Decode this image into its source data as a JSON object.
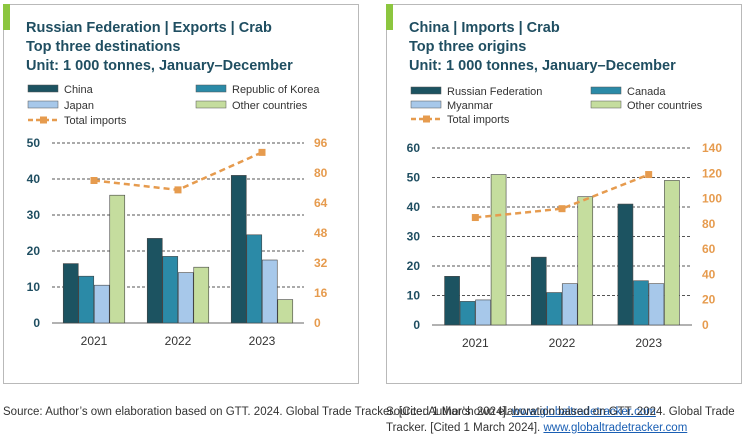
{
  "panels": [
    {
      "title_lines": [
        "Russian Federation | Exports | Crab",
        "Top three destinations",
        "Unit: 1 000 tonnes, January–December"
      ],
      "source_text": "Source: Author’s own elaboration based on GTT. 2024. Global Trade Tracker. [Cited 1 March 2024].",
      "source_link": "www.globaltradetracker.com"
    },
    {
      "title_lines": [
        "China | Imports | Crab",
        "Top three origins",
        "Unit: 1 000 tonnes, January–December"
      ],
      "source_text": "Source: Author’s own elaboration based on GTT. 2024. Global Trade Tracker. [Cited 1 March 2024].",
      "source_link": "www.globaltradetracker.com"
    }
  ],
  "chart_data": [
    {
      "type": "bar",
      "categories": [
        "2021",
        "2022",
        "2023"
      ],
      "series": [
        {
          "name": "China",
          "values": [
            16.5,
            23.5,
            41
          ],
          "color": "#1c5361"
        },
        {
          "name": "Republic of Korea",
          "values": [
            13,
            18.5,
            24.5
          ],
          "color": "#2b8aa7"
        },
        {
          "name": "Japan",
          "values": [
            10.5,
            14,
            17.5
          ],
          "color": "#a7c8ea"
        },
        {
          "name": "Other countries",
          "values": [
            35.5,
            15.5,
            6.5
          ],
          "color": "#c5dd9e"
        }
      ],
      "line": {
        "name": "Total imports",
        "values": [
          76,
          71,
          91
        ],
        "color": "#e69b4e",
        "axis": "right"
      },
      "ylim": [
        0,
        50
      ],
      "yticks": [
        0,
        10,
        20,
        30,
        40,
        50
      ],
      "y2lim": [
        0,
        96
      ],
      "y2ticks": [
        0,
        16,
        32,
        48,
        64,
        80,
        96
      ],
      "legend_position": "top",
      "grid": "dashed"
    },
    {
      "type": "bar",
      "categories": [
        "2021",
        "2022",
        "2023"
      ],
      "series": [
        {
          "name": "Russian Federation",
          "values": [
            16.5,
            23,
            41
          ],
          "color": "#1c5361"
        },
        {
          "name": "Canada",
          "values": [
            8,
            11,
            15
          ],
          "color": "#2b8aa7"
        },
        {
          "name": "Myanmar",
          "values": [
            8.5,
            14,
            14
          ],
          "color": "#a7c8ea"
        },
        {
          "name": "Other countries",
          "values": [
            51,
            43.5,
            49
          ],
          "color": "#c5dd9e"
        }
      ],
      "line": {
        "name": "Total imports",
        "values": [
          85,
          92,
          119
        ],
        "color": "#e69b4e",
        "axis": "right"
      },
      "ylim": [
        0,
        60
      ],
      "yticks": [
        0,
        10,
        20,
        30,
        40,
        50,
        60
      ],
      "y2lim": [
        0,
        140
      ],
      "y2ticks": [
        0,
        20,
        40,
        60,
        80,
        100,
        120,
        140
      ],
      "legend_position": "top",
      "grid": "dashed"
    }
  ]
}
